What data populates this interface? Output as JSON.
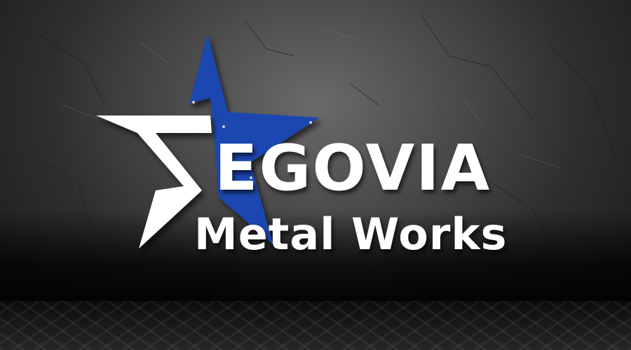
{
  "logo": {
    "name_line1": "EGOVIA",
    "name_line2": "Metal Works",
    "star_color": "#1f47b0",
    "s_mark_color": "#ffffff",
    "icons": [
      "star-icon",
      "s-letter-mark-icon"
    ]
  },
  "background": {
    "wall": "concrete-wall",
    "floor": "diamond-plate-floor"
  }
}
